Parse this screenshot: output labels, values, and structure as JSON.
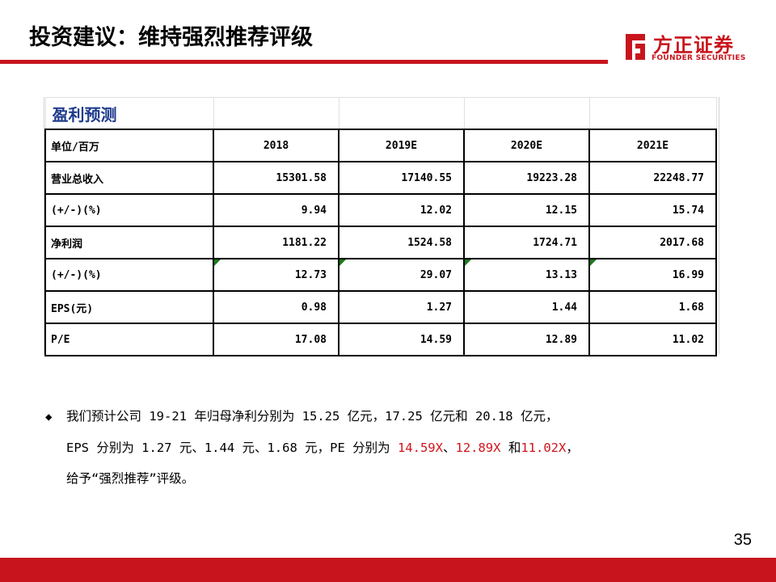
{
  "header": {
    "title": "投资建议：维持强烈推荐评级"
  },
  "logo": {
    "cn": "方正证券",
    "en": "FOUNDER SECURITIES",
    "color": "#c8151d"
  },
  "table": {
    "caption": "盈利预测",
    "header": [
      "单位/百万",
      "2018",
      "2019E",
      "2020E",
      "2021E"
    ],
    "rows": [
      {
        "label": "营业总收入",
        "values": [
          "15301.58",
          "17140.55",
          "19223.28",
          "22248.77"
        ]
      },
      {
        "label": "(+/-)(%)",
        "values": [
          "9.94",
          "12.02",
          "12.15",
          "15.74"
        ]
      },
      {
        "label": "净利润",
        "values": [
          "1181.22",
          "1524.58",
          "1724.71",
          "2017.68"
        ]
      },
      {
        "label": "(+/-)(%)",
        "values": [
          "12.73",
          "29.07",
          "13.13",
          "16.99"
        ]
      },
      {
        "label": "EPS(元)",
        "values": [
          "0.98",
          "1.27",
          "1.44",
          "1.68"
        ]
      },
      {
        "label": "P/E",
        "values": [
          "17.08",
          "14.59",
          "12.89",
          "11.02"
        ]
      }
    ]
  },
  "bullet": {
    "marker": "◆",
    "line1": "我们预计公司 19-21 年归母净利分别为 15.25 亿元，17.25 亿元和 20.18 亿元，",
    "line2_a": "EPS 分别为 1.27 元、1.44 元、1.68 元，PE 分别为 ",
    "pe1": "14.59X",
    "sep1": "、",
    "pe2": "12.89X",
    "sep2": " 和",
    "pe3": "11.02X",
    "line2_end": "，",
    "line3": "给予“强烈推荐”评级。"
  },
  "footer": {
    "page_number": "35"
  },
  "colors": {
    "accent_red": "#c8151d",
    "highlight_red": "#d0141c",
    "caption_blue": "#1f3b8c"
  }
}
